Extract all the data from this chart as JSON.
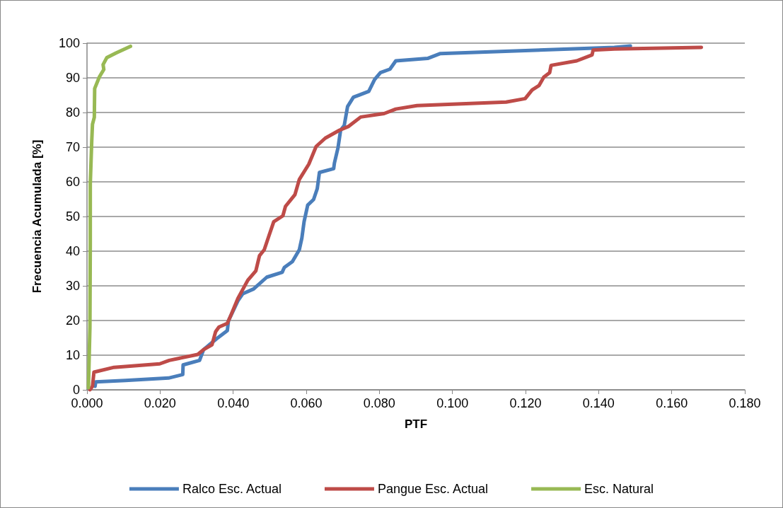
{
  "chart_data": {
    "type": "line",
    "xlabel": "PTF",
    "ylabel": "Frecuencia Acumulada [%]",
    "xlim": [
      0,
      0.18
    ],
    "xticks": [
      {
        "value": 0,
        "label": "0.000"
      },
      {
        "value": 0.02,
        "label": "0.020"
      },
      {
        "value": 0.04,
        "label": "0.040"
      },
      {
        "value": 0.06,
        "label": "0.060"
      },
      {
        "value": 0.08,
        "label": "0.080"
      },
      {
        "value": 0.1,
        "label": "0.100"
      },
      {
        "value": 0.12,
        "label": "0.120"
      },
      {
        "value": 0.14,
        "label": "0.140"
      },
      {
        "value": 0.16,
        "label": "0.160"
      },
      {
        "value": 0.18,
        "label": "0.180"
      }
    ],
    "ylim": [
      0,
      100
    ],
    "yticks": [
      0,
      10,
      20,
      30,
      40,
      50,
      60,
      70,
      80,
      90,
      100
    ],
    "grid": "y",
    "legend": "bottom",
    "marker": "none",
    "line_style": "solid",
    "series": [
      {
        "name": "Ralco Esc. Actual",
        "color": "#4a7ebb",
        "x": [
          0.0022,
          0.0024,
          0.0105,
          0.0223,
          0.0262,
          0.0263,
          0.0308,
          0.0319,
          0.0354,
          0.0384,
          0.0387,
          0.0413,
          0.0426,
          0.0456,
          0.0492,
          0.0534,
          0.054,
          0.0562,
          0.0581,
          0.0588,
          0.0594,
          0.0604,
          0.062,
          0.063,
          0.0636,
          0.0675,
          0.0677,
          0.0687,
          0.0694,
          0.0704,
          0.0713,
          0.0729,
          0.0771,
          0.0787,
          0.0803,
          0.0829,
          0.0845,
          0.0932,
          0.0967,
          0.1443,
          0.1487
        ],
        "values": [
          1,
          2.3,
          2.7,
          3.4,
          4.4,
          7.2,
          8.5,
          11.6,
          14.7,
          17.1,
          19.9,
          25.7,
          27.7,
          29.1,
          32.5,
          33.9,
          35.3,
          37,
          40.4,
          43.8,
          48.5,
          53.3,
          54.9,
          58,
          62.7,
          63.8,
          65.4,
          69.9,
          74.9,
          76.3,
          81.7,
          84.4,
          86.1,
          89.5,
          91.5,
          92.5,
          94.9,
          95.6,
          97,
          98.8,
          99.2
        ]
      },
      {
        "name": "Pangue Esc. Actual",
        "color": "#be4b48",
        "x": [
          0.0008,
          0.0015,
          0.0019,
          0.0074,
          0.0199,
          0.0225,
          0.0303,
          0.0319,
          0.0342,
          0.0352,
          0.0361,
          0.0384,
          0.0394,
          0.0413,
          0.044,
          0.0462,
          0.0472,
          0.0485,
          0.0498,
          0.0511,
          0.0536,
          0.0543,
          0.0569,
          0.0581,
          0.0607,
          0.0627,
          0.0652,
          0.0691,
          0.0716,
          0.0749,
          0.0813,
          0.0845,
          0.0903,
          0.1147,
          0.1199,
          0.1218,
          0.1237,
          0.125,
          0.1266,
          0.127,
          0.134,
          0.1382,
          0.1385,
          0.1443,
          0.1681
        ],
        "values": [
          0,
          1,
          5.1,
          6.5,
          7.5,
          8.5,
          10.2,
          11.6,
          13,
          16.8,
          18.1,
          19.2,
          21.6,
          26.4,
          31.6,
          34.3,
          38.7,
          40.4,
          44.5,
          48.5,
          50.2,
          52.9,
          56.3,
          60.7,
          65.1,
          70.2,
          72.6,
          74.9,
          76,
          78.7,
          79.7,
          81,
          82,
          83,
          84,
          86.5,
          87.8,
          90.2,
          91.5,
          93.6,
          94.9,
          96.6,
          98,
          98.3,
          98.8
        ]
      },
      {
        "name": "Esc. Natural",
        "color": "#98b954",
        "x": [
          0.0004,
          0.0008,
          0.0009,
          0.0009,
          0.0013,
          0.0015,
          0.002,
          0.0021,
          0.0034,
          0.0046,
          0.0044,
          0.0054,
          0.008,
          0.0119
        ],
        "values": [
          0.6,
          18.1,
          42.2,
          59.4,
          71.8,
          76.6,
          78.6,
          86.9,
          90.3,
          92.4,
          93.8,
          95.8,
          97.2,
          99.1
        ]
      }
    ]
  }
}
